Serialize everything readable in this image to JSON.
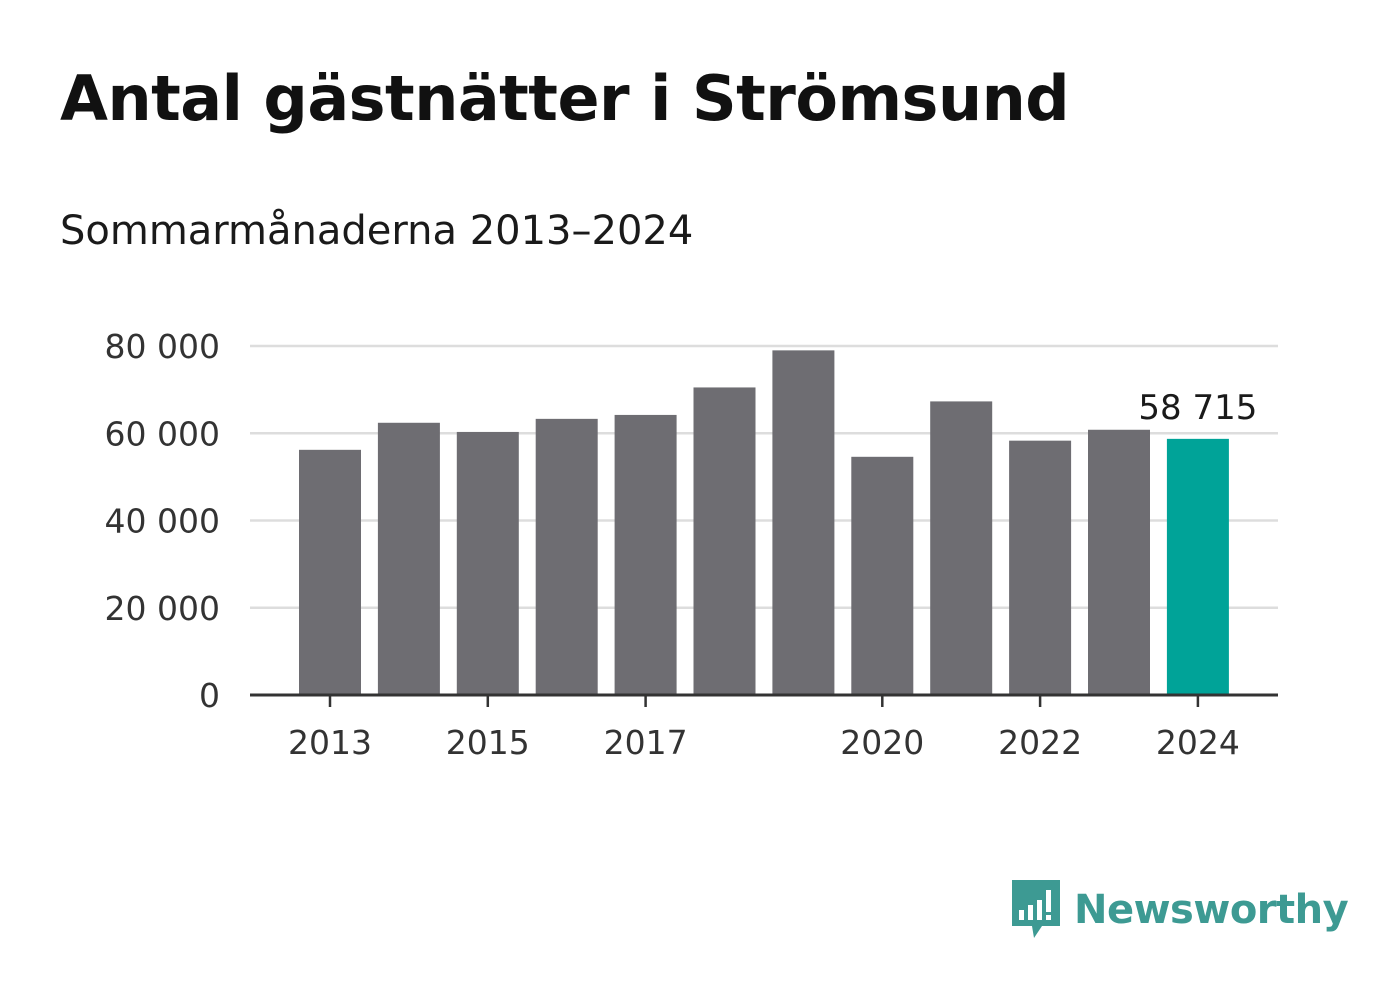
{
  "header": {
    "title": "Antal gästnätter i Strömsund",
    "subtitle": "Sommarmånaderna 2013–2024"
  },
  "chart_data": {
    "type": "bar",
    "title": "Antal gästnätter i Strömsund",
    "subtitle": "Sommarmånaderna 2013–2024",
    "xlabel": "",
    "ylabel": "",
    "categories": [
      2013,
      2014,
      2015,
      2016,
      2017,
      2018,
      2019,
      2020,
      2021,
      2022,
      2023,
      2024
    ],
    "x_tick_labels": [
      "2013",
      "2015",
      "2017",
      "2020",
      "2022",
      "2024"
    ],
    "values": [
      56200,
      62400,
      60300,
      63300,
      64200,
      70500,
      79000,
      54600,
      67300,
      58300,
      60800,
      58715
    ],
    "ylim": [
      0,
      80000
    ],
    "y_ticks": [
      0,
      20000,
      40000,
      60000,
      80000
    ],
    "y_tick_labels": [
      "0",
      "20 000",
      "40 000",
      "60 000",
      "80 000"
    ],
    "grid": true,
    "highlight_index": 11,
    "annotations": [
      {
        "category": 2024,
        "text": "58 715"
      }
    ],
    "colors": {
      "bar": "#6e6d72",
      "highlight": "#00a398",
      "grid": "#dddddd",
      "axis": "#333333"
    }
  },
  "logo": {
    "name": "Newsworthy",
    "icon": "speech-bubble-bar-chart-icon",
    "color": "#3d9a93"
  }
}
